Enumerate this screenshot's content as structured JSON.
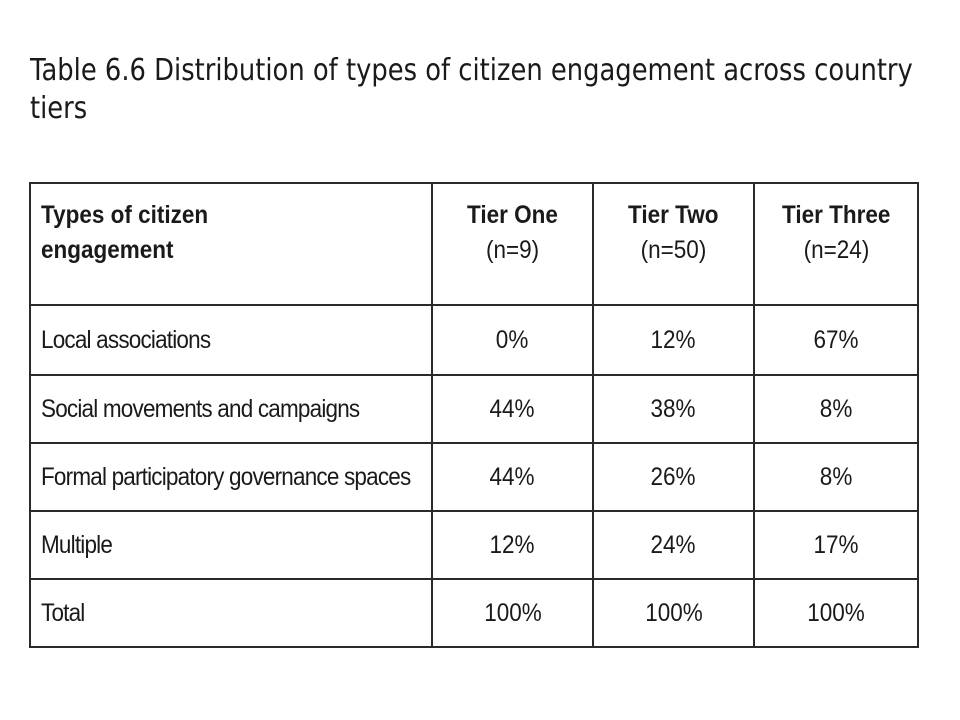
{
  "caption": {
    "label": "Table 6.6",
    "text": "Distribution of types of citizen engagement across country tiers"
  },
  "table": {
    "header": {
      "first": "Types of citizen engagement",
      "tiers": [
        {
          "name": "Tier One",
          "n": "(n=9)"
        },
        {
          "name": "Tier Two",
          "n": "(n=50)"
        },
        {
          "name": "Tier Three",
          "n": "(n=24)"
        }
      ]
    },
    "rows": [
      {
        "label": "Local associations",
        "values": [
          "0%",
          "12%",
          "67%"
        ]
      },
      {
        "label": "Social movements and campaigns",
        "values": [
          "44%",
          "38%",
          "8%"
        ]
      },
      {
        "label": "Formal participatory governance spaces",
        "values": [
          "44%",
          "26%",
          "8%"
        ]
      },
      {
        "label": "Multiple",
        "values": [
          "12%",
          "24%",
          "17%"
        ]
      },
      {
        "label": "Total",
        "values": [
          "100%",
          "100%",
          "100%"
        ]
      }
    ]
  }
}
